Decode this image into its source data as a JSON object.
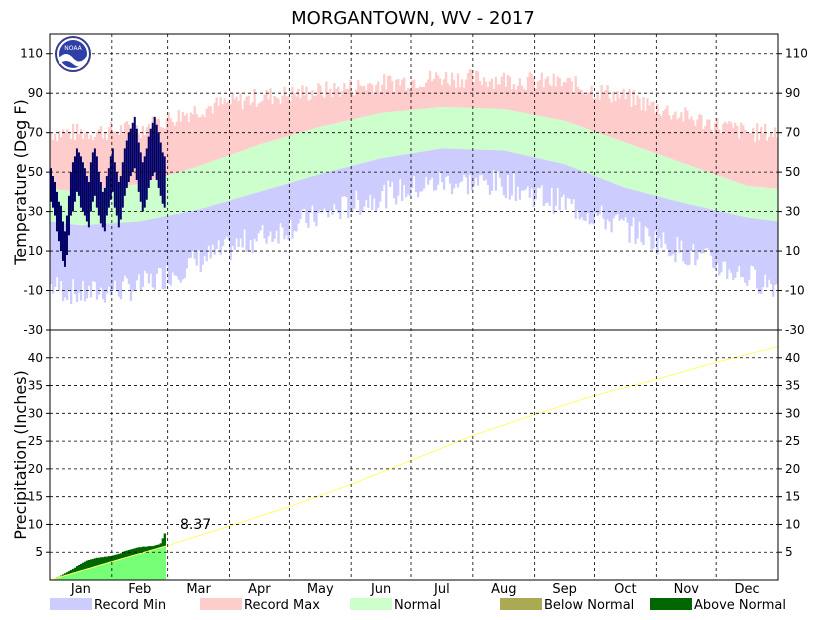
{
  "chart_data": [
    {
      "type": "area",
      "title": "MORGANTOWN, WV - 2017",
      "ylabel": "Temperature (Deg F)",
      "ylim": [
        -30,
        120
      ],
      "yticks": [
        110,
        90,
        70,
        50,
        30,
        10,
        -10,
        -30
      ],
      "x_categories": [
        "Jan",
        "Feb",
        "Mar",
        "Apr",
        "May",
        "Jun",
        "Jul",
        "Aug",
        "Sep",
        "Oct",
        "Nov",
        "Dec"
      ],
      "grid": true,
      "normal_high_by_month": [
        40,
        44,
        53,
        64,
        73,
        80,
        83,
        82,
        76,
        65,
        54,
        43
      ],
      "normal_low_by_month": [
        23,
        25,
        31,
        40,
        49,
        57,
        62,
        61,
        54,
        42,
        34,
        27
      ],
      "record_max_by_month": [
        70,
        72,
        82,
        88,
        91,
        95,
        98,
        97,
        95,
        88,
        78,
        70
      ],
      "record_min_by_month": [
        -12,
        -8,
        5,
        17,
        28,
        38,
        45,
        44,
        34,
        22,
        9,
        -3
      ],
      "observed_high_jan_feb": [
        52,
        48,
        45,
        40,
        35,
        33,
        25,
        20,
        28,
        38,
        50,
        55,
        58,
        62,
        60,
        58,
        55,
        52,
        48,
        45,
        55,
        60,
        62,
        58,
        50,
        45,
        40,
        42,
        48,
        52,
        58,
        62,
        55,
        50,
        45,
        48,
        55,
        62,
        66,
        70,
        72,
        75,
        78,
        72,
        65,
        60,
        55,
        58,
        62,
        68,
        72,
        75,
        78,
        74,
        70,
        65,
        60,
        58
      ],
      "observed_low_jan_feb": [
        35,
        32,
        28,
        20,
        15,
        10,
        5,
        2,
        8,
        18,
        28,
        30,
        35,
        40,
        38,
        32,
        30,
        28,
        25,
        22,
        30,
        35,
        38,
        32,
        28,
        24,
        22,
        20,
        28,
        32,
        36,
        40,
        32,
        28,
        22,
        26,
        32,
        38,
        42,
        45,
        48,
        50,
        52,
        46,
        40,
        35,
        30,
        32,
        36,
        42,
        46,
        48,
        50,
        46,
        42,
        38,
        34,
        32
      ]
    },
    {
      "type": "area",
      "ylabel": "Precipitation (Inches)",
      "ylim": [
        0,
        45
      ],
      "yticks": [
        40,
        35,
        30,
        25,
        20,
        15,
        10,
        5
      ],
      "grid": true,
      "normal_cumulative_end_of_month": [
        3.3,
        6.2,
        9.7,
        13.2,
        17.2,
        21.5,
        26.0,
        29.8,
        33.2,
        36.1,
        39.2,
        42.0
      ],
      "observed_cumulative_jan_feb": [
        0.1,
        0.2,
        0.3,
        0.5,
        0.6,
        0.8,
        1.0,
        1.2,
        1.4,
        1.6,
        1.8,
        2.0,
        2.2,
        2.5,
        2.7,
        2.9,
        3.1,
        3.3,
        3.5,
        3.6,
        3.7,
        3.8,
        3.9,
        4.0,
        4.0,
        4.1,
        4.1,
        4.2,
        4.2,
        4.3,
        4.3,
        4.4,
        4.5,
        4.6,
        4.7,
        4.8,
        5.0,
        5.2,
        5.3,
        5.4,
        5.5,
        5.6,
        5.7,
        5.8,
        5.9,
        5.9,
        6.0,
        6.0,
        6.0,
        6.1,
        6.1,
        6.1,
        6.2,
        6.3,
        6.4,
        6.6,
        7.5,
        8.37
      ],
      "annotation": "8.37"
    }
  ],
  "legend": [
    {
      "label": "Record Min",
      "color": "#ccccff"
    },
    {
      "label": "Record Max",
      "color": "#ffcccc"
    },
    {
      "label": "Normal",
      "color": "#ccffcc"
    },
    {
      "label": "Below Normal",
      "color": "#aaaa55"
    },
    {
      "label": "Above Normal",
      "color": "#006600"
    }
  ],
  "logo": {
    "text": "NOAA"
  },
  "colors": {
    "record_min": "#ccccff",
    "record_max": "#ffcccc",
    "normal": "#ccffcc",
    "observed": "#000066",
    "precip_normal_line": "#ffff66",
    "precip_fill": "#77ff77",
    "above_normal": "#006600"
  }
}
